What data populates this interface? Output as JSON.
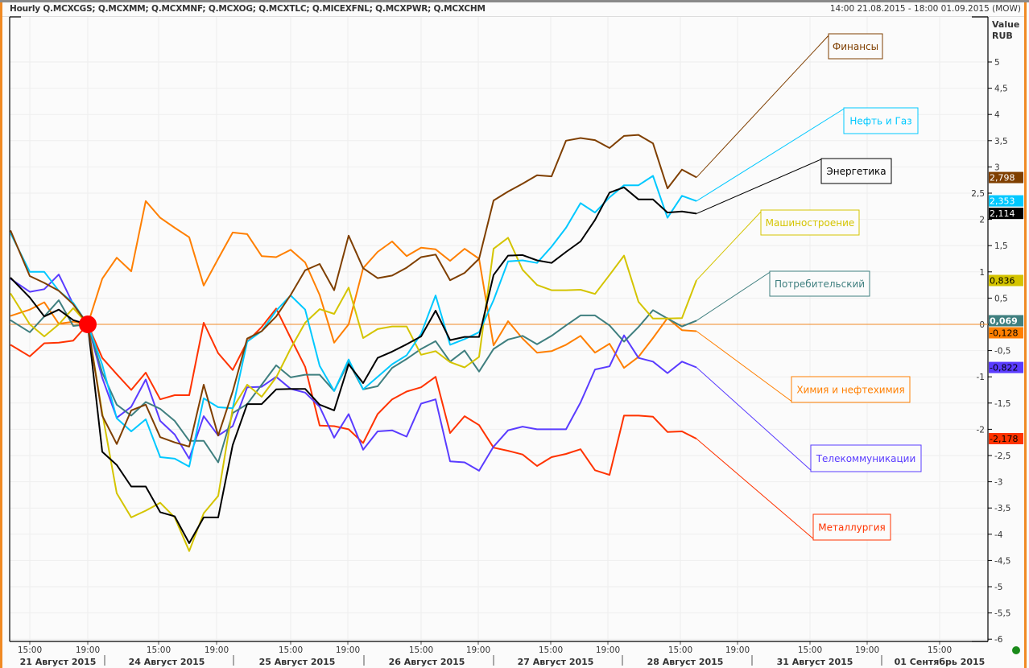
{
  "header": {
    "title": "Hourly Q.MCXCGS; Q.MCXMM; Q.MCXMNF; Q.MCXOG; Q.MCXTLC; Q.MICEXFNL; Q.MCXPWR; Q.MCXCHM",
    "range": "14:00 21.08.2015 - 18:00 01.09.2015 (MOW)"
  },
  "chart_data": {
    "type": "line",
    "title": "Hourly Q.MCXCGS; Q.MCXMM; Q.MCXMNF; Q.MCXOG; Q.MCXTLC; Q.MICEXFNL; Q.MCXPWR; Q.MCXCHM",
    "ylabel_line1": "Value",
    "ylabel_line2": "RUB",
    "ylim": [
      -6,
      5
    ],
    "y_ticks": [
      5,
      4.5,
      4,
      3.5,
      3,
      2.5,
      2,
      1.5,
      1,
      0.5,
      0,
      -0.5,
      -1,
      -1.5,
      -2,
      -2.5,
      -3,
      -3.5,
      -4,
      -4.5,
      -5,
      -5.5,
      -6
    ],
    "y_tick_labels": [
      "5",
      "4,5",
      "4",
      "3,5",
      "3",
      "2,5",
      "2",
      "1,5",
      "1",
      "0,5",
      "0",
      "-0,5",
      "-1",
      "-1,5",
      "-2",
      "-2,5",
      "-3",
      "-3,5",
      "-4",
      "-4,5",
      "-5",
      "-5,5",
      "-6"
    ],
    "x_tick_labels": [
      "15:00",
      "19:00",
      "15:00",
      "19:00",
      "15:00",
      "19:00",
      "15:00",
      "19:00",
      "15:00",
      "19:00",
      "15:00",
      "19:00",
      "15:00",
      "19:00",
      "15:00"
    ],
    "day_labels": [
      "21 Август 2015",
      "24 Август 2015",
      "25 Август 2015",
      "26 Август 2015",
      "27 Август 2015",
      "28 Август 2015",
      "31 Август 2015",
      "01 Сентябрь 2015"
    ],
    "x_unit": "hourly point index",
    "grid": true,
    "reference_point_index": 5,
    "series": [
      {
        "name": "Финансы",
        "color": "#7f3f00",
        "badge_text": "#ffffff",
        "last": "2,798",
        "last_value": 2.798,
        "values": [
          1.79,
          0.92,
          0.79,
          0.64,
          0.38,
          0,
          -1.74,
          -2.28,
          -1.64,
          -1.53,
          -2.15,
          -2.25,
          -2.33,
          -1.15,
          -2.12,
          -1.28,
          -0.27,
          -0.13,
          0.15,
          0.56,
          1.03,
          1.15,
          0.65,
          1.69,
          1.07,
          0.88,
          0.93,
          1.08,
          1.28,
          1.33,
          0.84,
          0.98,
          1.25,
          2.36,
          2.53,
          2.68,
          2.84,
          2.82,
          3.5,
          3.55,
          3.51,
          3.36,
          3.59,
          3.61,
          3.45,
          2.59,
          2.95,
          2.8
        ]
      },
      {
        "name": "Нефть и Газ",
        "color": "#00c8ff",
        "badge_text": "#ffffff",
        "last": "2,353",
        "last_value": 2.353,
        "values": [
          1.74,
          1.0,
          1.0,
          0.64,
          0.41,
          0,
          -0.77,
          -1.79,
          -2.04,
          -1.81,
          -2.53,
          -2.56,
          -2.71,
          -1.41,
          -1.58,
          -1.6,
          -0.33,
          -0.13,
          0.26,
          0.55,
          0.28,
          -0.79,
          -1.27,
          -0.67,
          -1.24,
          -1.0,
          -0.76,
          -0.59,
          -0.18,
          0.55,
          -0.39,
          -0.28,
          -0.15,
          0.46,
          1.2,
          1.22,
          1.17,
          1.48,
          1.84,
          2.31,
          2.13,
          2.42,
          2.65,
          2.65,
          2.83,
          2.03,
          2.45,
          2.35
        ]
      },
      {
        "name": "Энергетика",
        "color": "#000000",
        "badge_text": "#ffffff",
        "last": "2,114",
        "last_value": 2.114,
        "values": [
          0.89,
          0.51,
          0.15,
          0.28,
          0.08,
          0,
          -2.43,
          -2.68,
          -3.09,
          -3.09,
          -3.58,
          -3.66,
          -4.17,
          -3.68,
          -3.68,
          -2.3,
          -1.52,
          -1.52,
          -1.24,
          -1.23,
          -1.23,
          -1.53,
          -1.64,
          -0.76,
          -1.12,
          -0.64,
          -0.52,
          -0.38,
          -0.23,
          0.26,
          -0.3,
          -0.24,
          -0.24,
          0.94,
          1.31,
          1.32,
          1.22,
          1.17,
          1.38,
          1.58,
          1.99,
          2.51,
          2.61,
          2.38,
          2.38,
          2.13,
          2.15,
          2.11
        ]
      },
      {
        "name": "Машиностроение",
        "color": "#d4c400",
        "badge_text": "#000000",
        "last": "0,836",
        "last_value": 0.836,
        "values": [
          0.59,
          0,
          -0.23,
          0,
          0.31,
          0,
          -1.69,
          -3.22,
          -3.68,
          -3.55,
          -3.4,
          -3.68,
          -4.32,
          -3.6,
          -3.27,
          -1.6,
          -1.15,
          -1.38,
          -1.01,
          -0.46,
          0.03,
          0.29,
          0.2,
          0.7,
          -0.26,
          -0.09,
          -0.04,
          -0.04,
          -0.58,
          -0.51,
          -0.72,
          -0.82,
          -0.62,
          1.44,
          1.65,
          1.04,
          0.75,
          0.65,
          0.65,
          0.66,
          0.58,
          0.94,
          1.31,
          0.43,
          0.11,
          0.11,
          0.12,
          0.84
        ]
      },
      {
        "name": "Потребительский",
        "color": "#3f7f7f",
        "badge_text": "#ffffff",
        "last": "0,069",
        "last_value": 0.069,
        "values": [
          0.08,
          -0.15,
          0.15,
          0.46,
          -0.03,
          0,
          -0.92,
          -1.53,
          -1.74,
          -1.48,
          -1.61,
          -1.84,
          -2.22,
          -2.22,
          -2.63,
          -1.69,
          -1.52,
          -1.15,
          -0.78,
          -1.01,
          -0.96,
          -0.96,
          -1.27,
          -0.72,
          -1.24,
          -1.18,
          -0.83,
          -0.66,
          -0.47,
          -0.32,
          -0.71,
          -0.5,
          -0.9,
          -0.47,
          -0.29,
          -0.22,
          -0.38,
          -0.22,
          -0.02,
          0.17,
          0.17,
          -0.02,
          -0.33,
          -0.05,
          0.27,
          0.11,
          -0.04,
          0.07
        ]
      },
      {
        "name": "Химия и нефтехимия",
        "color": "#ff7f00",
        "badge_text": "#000000",
        "last": "-0,128",
        "last_value": -0.128,
        "values": [
          0.16,
          0.28,
          0.42,
          0.01,
          0.05,
          0,
          0.87,
          1.27,
          1.01,
          2.35,
          2.03,
          1.84,
          1.66,
          0.74,
          1.25,
          1.75,
          1.72,
          1.3,
          1.28,
          1.42,
          1.18,
          0.56,
          -0.35,
          0,
          1.07,
          1.38,
          1.58,
          1.3,
          1.46,
          1.43,
          1.21,
          1.44,
          1.25,
          -0.4,
          0.06,
          -0.27,
          -0.54,
          -0.51,
          -0.39,
          -0.22,
          -0.54,
          -0.37,
          -0.83,
          -0.62,
          -0.26,
          0.12,
          -0.11,
          -0.13
        ]
      },
      {
        "name": "Телекоммуникации",
        "color": "#5a3cff",
        "badge_text": "#000000",
        "last": "-0,822",
        "last_value": -0.822,
        "values": [
          0.87,
          0.62,
          0.67,
          0.95,
          0.38,
          0,
          -1.02,
          -1.78,
          -1.57,
          -1.05,
          -1.84,
          -2.1,
          -2.56,
          -1.75,
          -2.12,
          -1.94,
          -1.2,
          -1.19,
          -1.0,
          -1.23,
          -1.3,
          -1.57,
          -2.16,
          -1.71,
          -2.39,
          -2.04,
          -2.02,
          -2.14,
          -1.51,
          -1.43,
          -2.61,
          -2.63,
          -2.79,
          -2.33,
          -2.02,
          -1.95,
          -2.0,
          -2.0,
          -2.0,
          -1.49,
          -0.86,
          -0.8,
          -0.21,
          -0.64,
          -0.71,
          -0.93,
          -0.71,
          -0.82
        ]
      },
      {
        "name": "Металлургия",
        "color": "#ff3300",
        "badge_text": "#000000",
        "last": "-2,178",
        "last_value": -2.178,
        "values": [
          -0.39,
          -0.61,
          -0.36,
          -0.35,
          -0.31,
          0,
          -0.64,
          -0.95,
          -1.25,
          -0.92,
          -1.43,
          -1.35,
          -1.35,
          0.03,
          -0.55,
          -0.87,
          -0.33,
          -0.05,
          0.3,
          -0.26,
          -0.81,
          -1.93,
          -1.94,
          -2.0,
          -2.26,
          -1.71,
          -1.43,
          -1.28,
          -1.2,
          -1.0,
          -2.07,
          -1.75,
          -1.92,
          -2.35,
          -2.41,
          -2.48,
          -2.7,
          -2.53,
          -2.47,
          -2.38,
          -2.78,
          -2.87,
          -1.74,
          -1.74,
          -1.76,
          -2.05,
          -2.04,
          -2.18
        ]
      }
    ]
  },
  "status": {
    "indicator_color": "#1a8a1a"
  }
}
